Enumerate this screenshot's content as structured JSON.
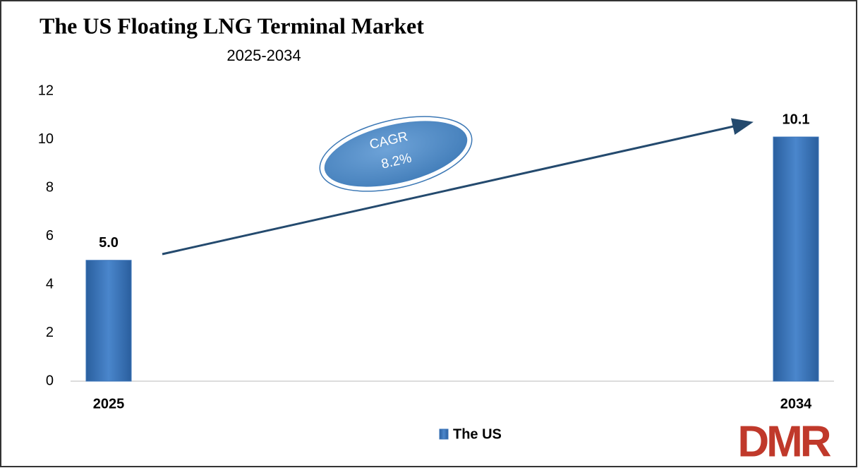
{
  "chart_data": {
    "type": "bar",
    "title": "The US Floating LNG Terminal Market",
    "subtitle": "2025-2034",
    "categories": [
      "2025",
      "2034"
    ],
    "series": [
      {
        "name": "The US",
        "color": "#3b74b9",
        "values": [
          5.0,
          10.1
        ],
        "value_labels": [
          "5.0",
          "10.1"
        ]
      }
    ],
    "ylim": [
      0,
      12
    ],
    "yticks": [
      0,
      2,
      4,
      6,
      8,
      10,
      12
    ],
    "grid": false,
    "legend": "bottom",
    "annotations": [
      "CAGR",
      "8.2%"
    ],
    "logo": "DMR"
  }
}
